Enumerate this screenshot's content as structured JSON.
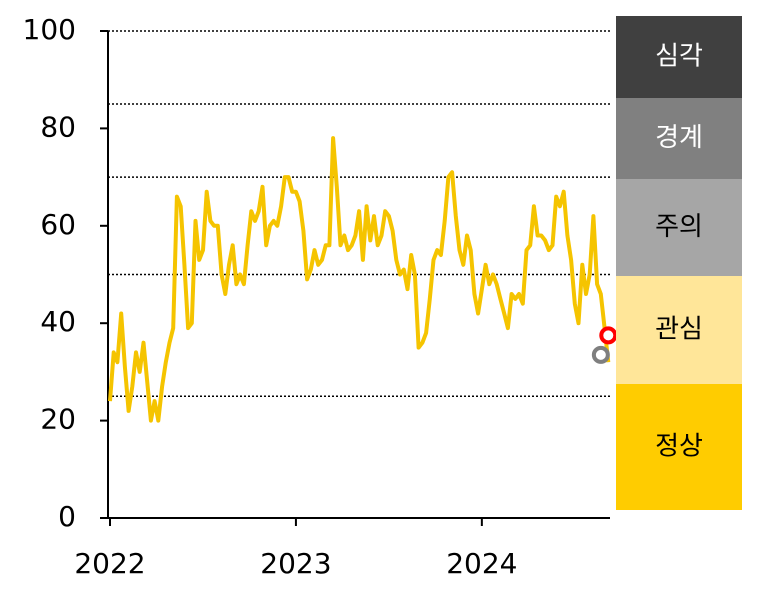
{
  "chart_data": {
    "type": "line",
    "x": [
      2022.0,
      2022.02,
      2022.04,
      2022.06,
      2022.08,
      2022.1,
      2022.12,
      2022.14,
      2022.16,
      2022.18,
      2022.2,
      2022.22,
      2022.24,
      2022.26,
      2022.28,
      2022.3,
      2022.32,
      2022.34,
      2022.36,
      2022.38,
      2022.4,
      2022.42,
      2022.44,
      2022.46,
      2022.48,
      2022.5,
      2022.52,
      2022.54,
      2022.56,
      2022.58,
      2022.6,
      2022.62,
      2022.64,
      2022.66,
      2022.68,
      2022.7,
      2022.72,
      2022.74,
      2022.76,
      2022.78,
      2022.8,
      2022.82,
      2022.84,
      2022.86,
      2022.88,
      2022.9,
      2022.92,
      2022.94,
      2022.96,
      2022.98,
      2023.0,
      2023.02,
      2023.04,
      2023.06,
      2023.08,
      2023.1,
      2023.12,
      2023.14,
      2023.16,
      2023.18,
      2023.2,
      2023.22,
      2023.24,
      2023.26,
      2023.28,
      2023.3,
      2023.32,
      2023.34,
      2023.36,
      2023.38,
      2023.4,
      2023.42,
      2023.44,
      2023.46,
      2023.48,
      2023.5,
      2023.52,
      2023.54,
      2023.56,
      2023.58,
      2023.6,
      2023.62,
      2023.64,
      2023.66,
      2023.68,
      2023.7,
      2023.72,
      2023.74,
      2023.76,
      2023.78,
      2023.8,
      2023.82,
      2023.84,
      2023.86,
      2023.88,
      2023.9,
      2023.92,
      2023.94,
      2023.96,
      2023.98,
      2024.0,
      2024.02,
      2024.04,
      2024.06,
      2024.08,
      2024.1,
      2024.12,
      2024.14,
      2024.16,
      2024.18,
      2024.2,
      2024.22,
      2024.24,
      2024.26,
      2024.28,
      2024.3,
      2024.32,
      2024.34,
      2024.36,
      2024.38,
      2024.4,
      2024.42,
      2024.44,
      2024.46,
      2024.48,
      2024.5,
      2024.52,
      2024.54,
      2024.56,
      2024.58,
      2024.6,
      2024.62,
      2024.64,
      2024.66,
      2024.68
    ],
    "values": [
      24,
      34,
      32,
      42,
      31,
      22,
      27,
      34,
      30,
      36,
      28,
      20,
      24,
      20,
      27,
      32,
      36,
      39,
      66,
      64,
      52,
      39,
      40,
      61,
      53,
      55,
      67,
      61,
      60,
      60,
      50,
      46,
      52,
      56,
      48,
      50,
      48,
      56,
      63,
      61,
      63,
      68,
      56,
      60,
      61,
      60,
      64,
      70,
      70,
      67,
      67,
      65,
      59,
      49,
      51,
      55,
      52,
      53,
      56,
      56,
      78,
      68,
      56,
      58,
      55,
      56,
      58,
      63,
      53,
      64,
      57,
      62,
      56,
      58,
      63,
      62,
      59,
      53,
      50,
      51,
      47,
      54,
      50,
      35,
      36,
      38,
      45,
      53,
      55,
      54,
      61,
      70,
      71,
      62,
      55,
      52,
      58,
      55,
      46,
      42,
      47,
      52,
      48,
      50,
      48,
      45,
      42,
      39,
      46,
      45,
      46,
      44,
      55,
      56,
      64,
      58,
      58,
      57,
      55,
      56,
      66,
      64,
      67,
      58,
      53,
      44,
      40,
      52,
      46,
      50,
      62,
      48,
      46,
      39,
      32
    ],
    "color": "#f5c400",
    "xlim": [
      2022,
      2024.7
    ],
    "xticks": [
      2022,
      2023,
      2024
    ],
    "ylim": [
      0,
      100
    ],
    "yticks": [
      0,
      20,
      40,
      60,
      80,
      100
    ],
    "reference_lines": [
      100,
      85,
      70,
      50,
      25
    ],
    "markers": [
      {
        "x": 2024.68,
        "value": 37.5,
        "color": "#ff0000"
      },
      {
        "x": 2024.64,
        "value": 33.5,
        "color": "#7f7f7f"
      }
    ],
    "bands": [
      {
        "label": "심각",
        "color": "#404040",
        "text_color": "#ffffff"
      },
      {
        "label": "경계",
        "color": "#808080",
        "text_color": "#ffffff"
      },
      {
        "label": "주의",
        "color": "#a6a6a6",
        "text_color": "#000000"
      },
      {
        "label": "관심",
        "color": "#ffe699",
        "text_color": "#000000"
      },
      {
        "label": "정상",
        "color": "#ffcc00",
        "text_color": "#000000"
      }
    ]
  }
}
